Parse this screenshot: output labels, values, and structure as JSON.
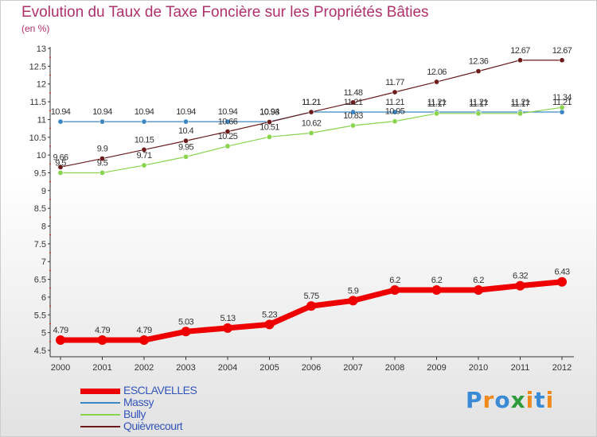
{
  "chart_data": {
    "type": "line",
    "title": "Evolution du Taux de Taxe Foncière sur les Propriétés Bâties",
    "ylabel": "(en %)",
    "xlabel": "",
    "ylim": [
      4.5,
      13
    ],
    "yticks": [
      "4.5",
      "5",
      "5.5",
      "6",
      "6.5",
      "7",
      "7.5",
      "8",
      "8.5",
      "9",
      "9.5",
      "10",
      "10.5",
      "11",
      "11.5",
      "12",
      "12.5",
      "13"
    ],
    "categories": [
      "2000",
      "2001",
      "2002",
      "2003",
      "2004",
      "2005",
      "2006",
      "2007",
      "2008",
      "2009",
      "2010",
      "2011",
      "2012"
    ],
    "series": [
      {
        "name": "ESCLAVELLES",
        "color": "#ee0000",
        "values": [
          4.79,
          4.79,
          4.79,
          5.03,
          5.13,
          5.23,
          5.75,
          5.9,
          6.2,
          6.2,
          6.2,
          6.32,
          6.43
        ],
        "labels": [
          "4.79",
          "4.79",
          "4.79",
          "5.03",
          "5.13",
          "5.23",
          "5.75",
          "5.9",
          "6.2",
          "6.2",
          "6.2",
          "6.32",
          "6.43"
        ]
      },
      {
        "name": "Massy",
        "color": "#3b86c4",
        "values": [
          10.94,
          10.94,
          10.94,
          10.94,
          10.94,
          10.94,
          11.21,
          11.21,
          11.21,
          11.21,
          11.21,
          11.21,
          11.21
        ],
        "labels": [
          "10.94",
          "10.94",
          "10.94",
          "10.94",
          "10.94",
          "10.94",
          "11.21",
          "11.21",
          "11.21",
          "11.21",
          "11.21",
          "11.21",
          "11.21"
        ]
      },
      {
        "name": "Bully",
        "color": "#88d44c",
        "values": [
          9.5,
          9.5,
          9.71,
          9.95,
          10.25,
          10.51,
          10.62,
          10.83,
          10.95,
          11.17,
          11.17,
          11.17,
          11.34
        ],
        "labels": [
          "9.5",
          "9.5",
          "9.71",
          "9.95",
          "10.25",
          "10.51",
          "10.62",
          "10.83",
          "10.95",
          "11.17",
          "11.17",
          "11.17",
          "11.34"
        ]
      },
      {
        "name": "Quièvrecourt",
        "color": "#6b1b1b",
        "values": [
          9.66,
          9.9,
          10.15,
          10.4,
          10.66,
          10.93,
          11.21,
          11.48,
          11.77,
          12.06,
          12.36,
          12.67,
          12.67
        ],
        "labels": [
          "9.66",
          "9.9",
          "10.15",
          "10.4",
          "10.66",
          "10.93",
          "11.21",
          "11.48",
          "11.77",
          "12.06",
          "12.36",
          "12.67",
          "12.67"
        ]
      }
    ],
    "legend": "bottom-left",
    "grid": false
  },
  "logo": {
    "text": "Proxiti"
  }
}
